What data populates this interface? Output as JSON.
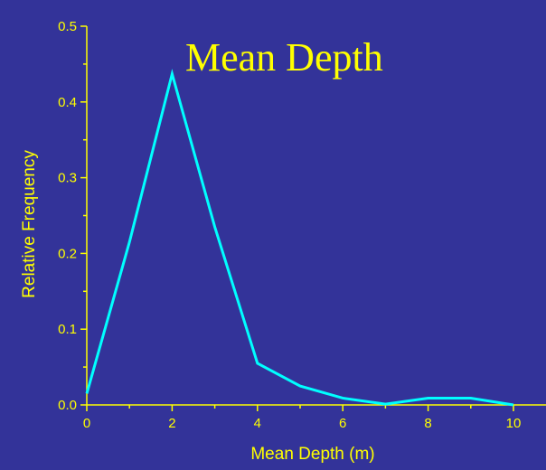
{
  "chart_data": {
    "type": "line",
    "title": "Mean Depth",
    "xlabel": "Mean Depth (m)",
    "ylabel": "Relative Frequency",
    "xlim": [
      0,
      10
    ],
    "ylim": [
      0,
      0.5
    ],
    "x_ticks": [
      "0",
      "2",
      "4",
      "6",
      "8",
      "10"
    ],
    "y_ticks": [
      "0.0",
      "0.1",
      "0.2",
      "0.3",
      "0.4",
      "0.5"
    ],
    "grid": false,
    "series": [
      {
        "x": [
          0,
          1,
          2,
          3,
          4,
          5,
          6,
          7,
          8,
          9,
          10
        ],
        "values": [
          0.015,
          0.215,
          0.437,
          0.235,
          0.055,
          0.025,
          0.009,
          0.001,
          0.009,
          0.009,
          0.0
        ]
      }
    ]
  },
  "colors": {
    "background": "#333399",
    "axis_text": "#FFFF00",
    "line": "#00FFFF"
  }
}
